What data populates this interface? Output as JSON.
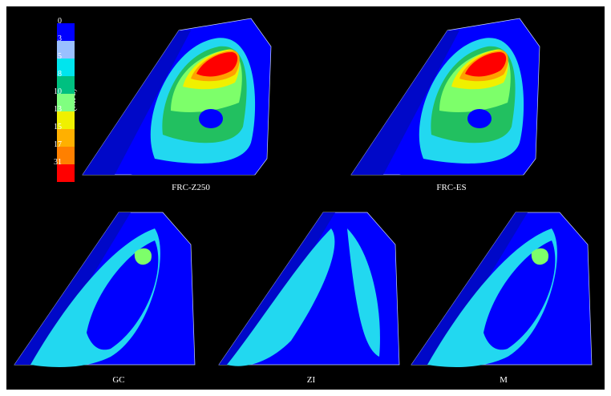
{
  "legend": {
    "unit": "(MPa)",
    "ticks": [
      "0",
      "3",
      "5",
      "8",
      "10",
      "13",
      "15",
      "17",
      "31"
    ],
    "colors": [
      "#0000ff",
      "#9ac0ff",
      "#00e5ee",
      "#00c080",
      "#80ff80",
      "#f0f000",
      "#ffb000",
      "#ff8000",
      "#ff0000"
    ]
  },
  "panels": [
    {
      "label": "FRC-Z250",
      "level": "high"
    },
    {
      "label": "FRC-ES",
      "level": "high"
    },
    {
      "label": "GC",
      "level": "low"
    },
    {
      "label": "ZI",
      "level": "min"
    },
    {
      "label": "M",
      "level": "low"
    }
  ],
  "palette": {
    "blue": "#0a1aff",
    "navy": "#0008c8",
    "cyan": "#22d8f0",
    "lightblue": "#4fb3ff",
    "green": "#22c060",
    "lime": "#7dff6a",
    "yellow": "#f0f000",
    "orange": "#ffa000",
    "red": "#ff0000",
    "white": "#ffffff"
  }
}
